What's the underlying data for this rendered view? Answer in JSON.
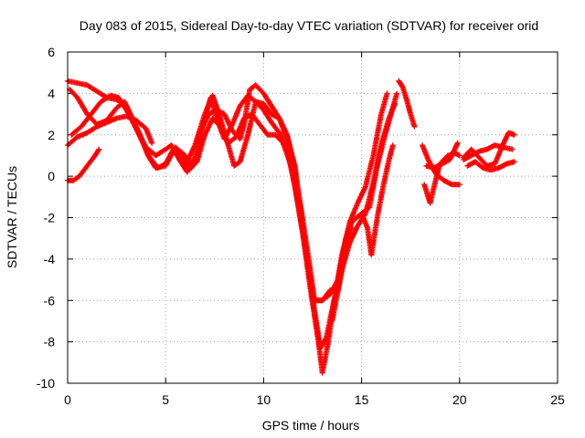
{
  "chart_data": {
    "type": "scatter",
    "title": "Day 083 of 2015, Sidereal Day-to-day VTEC variation (SDTVAR) for receiver orid",
    "xlabel": "GPS time / hours",
    "ylabel": "SDTVAR / TECUs",
    "xlim": [
      0,
      25
    ],
    "ylim": [
      -10,
      6
    ],
    "xticks": [
      "0",
      "5",
      "10",
      "15",
      "20",
      "25"
    ],
    "yticks": [
      "-10",
      "-8",
      "-6",
      "-4",
      "-2",
      "0",
      "2",
      "4",
      "6"
    ],
    "grid": true,
    "marker": "plus",
    "color": "#ff0000",
    "series": [
      {
        "values": [
          [
            0.0,
            1.5
          ],
          [
            0.5,
            1.9
          ],
          [
            1.0,
            2.1
          ],
          [
            1.5,
            2.4
          ],
          [
            2.0,
            2.6
          ],
          [
            2.5,
            2.8
          ],
          [
            3.0,
            2.9
          ],
          [
            3.5,
            2.7
          ],
          [
            4.0,
            2.3
          ],
          [
            4.3,
            1.6
          ]
        ]
      },
      {
        "values": [
          [
            0.0,
            -0.2
          ],
          [
            0.3,
            -0.2
          ],
          [
            0.6,
            0.0
          ],
          [
            1.0,
            0.5
          ],
          [
            1.4,
            1.0
          ],
          [
            1.6,
            1.3
          ]
        ]
      },
      {
        "values": [
          [
            0.1,
            4.2
          ],
          [
            0.5,
            3.8
          ],
          [
            1.0,
            3.0
          ],
          [
            1.5,
            2.5
          ],
          [
            2.0,
            2.7
          ],
          [
            2.5,
            3.3
          ],
          [
            2.9,
            3.6
          ],
          [
            3.3,
            2.8
          ],
          [
            3.7,
            2.0
          ],
          [
            4.1,
            1.0
          ],
          [
            4.5,
            0.4
          ],
          [
            5.0,
            0.5
          ],
          [
            5.5,
            1.4
          ],
          [
            6.0,
            1.0
          ],
          [
            6.3,
            0.5
          ]
        ]
      },
      {
        "values": [
          [
            0.0,
            4.6
          ],
          [
            0.5,
            4.5
          ],
          [
            1.0,
            4.4
          ],
          [
            1.5,
            4.1
          ],
          [
            2.0,
            3.8
          ],
          [
            2.5,
            3.7
          ],
          [
            3.0,
            3.4
          ],
          [
            3.4,
            2.5
          ],
          [
            3.8,
            1.7
          ],
          [
            4.2,
            0.9
          ],
          [
            4.6,
            0.4
          ],
          [
            5.0,
            0.6
          ],
          [
            5.4,
            1.3
          ],
          [
            5.8,
            1.1
          ],
          [
            6.2,
            0.3
          ],
          [
            6.6,
            0.7
          ],
          [
            7.0,
            2.0
          ],
          [
            7.4,
            2.8
          ],
          [
            7.8,
            2.4
          ],
          [
            8.2,
            1.6
          ],
          [
            8.6,
            1.9
          ],
          [
            9.0,
            2.8
          ],
          [
            9.4,
            3.0
          ],
          [
            9.8,
            2.5
          ],
          [
            10.2,
            2.0
          ],
          [
            10.6,
            2.0
          ],
          [
            11.0,
            1.6
          ],
          [
            11.4,
            0.5
          ],
          [
            11.8,
            -1.5
          ],
          [
            12.2,
            -3.8
          ],
          [
            12.6,
            -6.5
          ],
          [
            12.9,
            -8.3
          ],
          [
            13.2,
            -7.8
          ],
          [
            13.6,
            -6.0
          ],
          [
            14.0,
            -4.5
          ],
          [
            14.4,
            -3.2
          ],
          [
            14.8,
            -2.4
          ],
          [
            15.2,
            -1.8
          ],
          [
            15.6,
            -0.3
          ],
          [
            16.0,
            1.5
          ],
          [
            16.4,
            2.8
          ],
          [
            16.7,
            3.5
          ]
        ]
      },
      {
        "values": [
          [
            0.2,
            2.0
          ],
          [
            0.7,
            2.4
          ],
          [
            1.2,
            3.0
          ],
          [
            1.7,
            3.6
          ],
          [
            2.2,
            3.9
          ],
          [
            2.6,
            3.8
          ],
          [
            3.0,
            3.2
          ],
          [
            3.5,
            2.3
          ],
          [
            4.0,
            1.4
          ],
          [
            4.5,
            1.0
          ],
          [
            5.0,
            1.3
          ],
          [
            5.3,
            1.5
          ],
          [
            5.7,
            0.8
          ],
          [
            6.1,
            0.2
          ],
          [
            6.5,
            0.9
          ],
          [
            7.0,
            2.8
          ],
          [
            7.3,
            3.8
          ],
          [
            7.6,
            2.8
          ],
          [
            8.0,
            1.8
          ],
          [
            8.4,
            2.5
          ],
          [
            8.8,
            3.4
          ],
          [
            9.2,
            3.9
          ],
          [
            9.6,
            3.6
          ],
          [
            10.0,
            3.2
          ],
          [
            10.4,
            2.6
          ],
          [
            10.8,
            2.1
          ],
          [
            11.2,
            1.3
          ],
          [
            11.6,
            -0.5
          ],
          [
            12.0,
            -2.8
          ],
          [
            12.4,
            -5.5
          ],
          [
            12.8,
            -8.0
          ],
          [
            13.0,
            -9.5
          ],
          [
            13.3,
            -8.0
          ],
          [
            13.6,
            -6.0
          ],
          [
            14.0,
            -3.8
          ],
          [
            14.4,
            -2.2
          ],
          [
            14.8,
            -1.3
          ],
          [
            15.2,
            -0.5
          ],
          [
            15.6,
            1.0
          ],
          [
            16.0,
            3.0
          ],
          [
            16.3,
            4.0
          ]
        ]
      },
      {
        "values": [
          [
            6.0,
            0.5
          ],
          [
            6.5,
            1.5
          ],
          [
            7.0,
            3.0
          ],
          [
            7.4,
            3.9
          ],
          [
            7.7,
            3.1
          ],
          [
            8.1,
            1.8
          ],
          [
            8.5,
            0.5
          ],
          [
            8.8,
            0.7
          ],
          [
            9.2,
            2.0
          ],
          [
            9.6,
            3.6
          ],
          [
            10.0,
            3.5
          ],
          [
            10.4,
            3.0
          ],
          [
            10.8,
            2.8
          ],
          [
            11.2,
            2.0
          ],
          [
            11.5,
            0.8
          ],
          [
            11.9,
            -1.5
          ],
          [
            12.3,
            -4.0
          ],
          [
            12.6,
            -6.0
          ],
          [
            13.0,
            -6.0
          ],
          [
            13.4,
            -5.7
          ],
          [
            13.8,
            -5.0
          ],
          [
            14.1,
            -3.5
          ],
          [
            14.5,
            -2.2
          ],
          [
            15.0,
            -1.8
          ],
          [
            15.4,
            -1.5
          ],
          [
            15.8,
            0.5
          ],
          [
            16.2,
            2.0
          ],
          [
            16.5,
            3.0
          ],
          [
            16.8,
            4.0
          ]
        ]
      },
      {
        "values": [
          [
            6.8,
            2.2
          ],
          [
            7.2,
            3.0
          ],
          [
            7.6,
            3.2
          ],
          [
            8.0,
            3.0
          ],
          [
            8.4,
            2.2
          ],
          [
            8.8,
            1.8
          ],
          [
            9.0,
            2.5
          ],
          [
            9.3,
            4.2
          ],
          [
            9.6,
            4.4
          ],
          [
            10.0,
            4.0
          ],
          [
            10.4,
            3.4
          ],
          [
            10.8,
            2.8
          ],
          [
            11.2,
            1.8
          ],
          [
            11.6,
            0.5
          ],
          [
            12.0,
            -2.5
          ],
          [
            12.3,
            -4.5
          ],
          [
            12.6,
            -6.0
          ],
          [
            13.0,
            -6.0
          ],
          [
            13.4,
            -5.5
          ],
          [
            13.8,
            -5.5
          ],
          [
            14.1,
            -4.0
          ],
          [
            14.5,
            -2.5
          ]
        ]
      },
      {
        "values": [
          [
            13.5,
            -7.0
          ],
          [
            13.9,
            -5.0
          ],
          [
            14.2,
            -3.0
          ],
          [
            14.5,
            -2.2
          ],
          [
            15.0,
            -1.8
          ],
          [
            15.3,
            -2.5
          ],
          [
            15.5,
            -3.8
          ],
          [
            15.8,
            -2.0
          ],
          [
            16.1,
            -0.5
          ],
          [
            16.4,
            0.8
          ],
          [
            16.6,
            1.5
          ]
        ]
      },
      {
        "values": [
          [
            16.9,
            4.6
          ],
          [
            17.1,
            4.3
          ],
          [
            17.3,
            3.7
          ],
          [
            17.5,
            3.0
          ],
          [
            17.7,
            2.4
          ]
        ]
      },
      {
        "values": [
          [
            18.2,
            -0.4
          ],
          [
            18.5,
            -1.3
          ],
          [
            18.7,
            -0.5
          ],
          [
            19.0,
            0.6
          ],
          [
            19.4,
            1.0
          ],
          [
            19.8,
            1.1
          ],
          [
            20.0,
            1.0
          ]
        ]
      },
      {
        "values": [
          [
            18.1,
            1.5
          ],
          [
            18.4,
            0.8
          ],
          [
            18.8,
            0.1
          ],
          [
            19.2,
            -0.2
          ],
          [
            19.6,
            -0.4
          ],
          [
            20.0,
            -0.4
          ]
        ]
      },
      {
        "values": [
          [
            18.3,
            0.5
          ],
          [
            18.7,
            0.4
          ],
          [
            19.1,
            0.6
          ],
          [
            19.5,
            0.8
          ],
          [
            19.8,
            1.4
          ],
          [
            19.9,
            1.6
          ]
        ]
      },
      {
        "values": [
          [
            20.2,
            0.8
          ],
          [
            20.6,
            1.0
          ],
          [
            21.0,
            1.2
          ],
          [
            21.4,
            1.3
          ],
          [
            21.8,
            1.5
          ],
          [
            22.2,
            1.4
          ],
          [
            22.7,
            1.3
          ]
        ]
      },
      {
        "values": [
          [
            20.4,
            0.5
          ],
          [
            20.8,
            0.7
          ],
          [
            21.2,
            0.4
          ],
          [
            21.6,
            0.3
          ],
          [
            22.0,
            0.4
          ],
          [
            22.4,
            0.6
          ],
          [
            22.8,
            0.7
          ]
        ]
      },
      {
        "values": [
          [
            20.2,
            0.9
          ],
          [
            20.6,
            1.3
          ],
          [
            21.0,
            0.9
          ],
          [
            21.4,
            0.5
          ],
          [
            21.8,
            0.6
          ],
          [
            22.2,
            1.5
          ],
          [
            22.5,
            2.1
          ],
          [
            22.8,
            2.0
          ]
        ]
      }
    ]
  }
}
